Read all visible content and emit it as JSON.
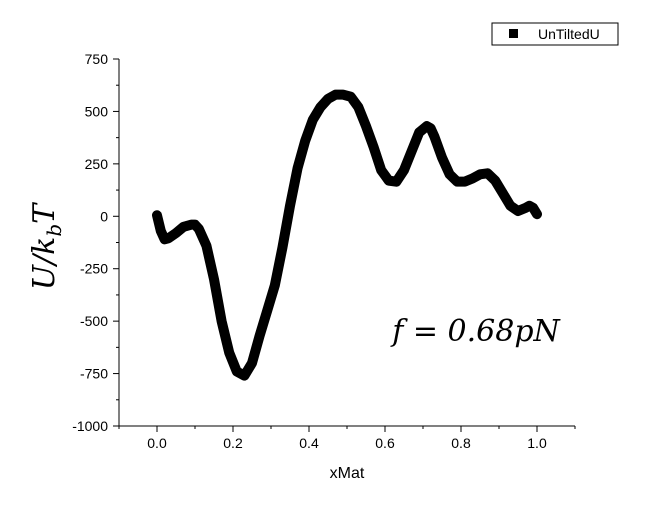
{
  "chart_data": {
    "type": "line",
    "title": "",
    "xlabel": "xMat",
    "ylabel": "U/k_bT",
    "xlim": [
      -0.1,
      1.1
    ],
    "ylim": [
      -1000,
      750
    ],
    "x_ticks": [
      0.0,
      0.2,
      0.4,
      0.6,
      0.8,
      1.0
    ],
    "x_tick_labels": [
      "0.0",
      "0.2",
      "0.4",
      "0.6",
      "0.8",
      "1.0"
    ],
    "y_ticks": [
      750,
      500,
      250,
      0,
      -250,
      -500,
      -750,
      -1000
    ],
    "y_tick_labels": [
      "750",
      "500",
      "250",
      "0",
      "-250",
      "-500",
      "-750",
      "-1000"
    ],
    "legend": {
      "placement": "top-right",
      "label": "UnTiltedU"
    },
    "annotation": "f = 0.68pN",
    "grid": false,
    "series": [
      {
        "name": "UnTiltedU",
        "color": "#000000",
        "x": [
          0.0,
          0.01,
          0.02,
          0.03,
          0.05,
          0.07,
          0.09,
          0.1,
          0.11,
          0.13,
          0.15,
          0.17,
          0.19,
          0.21,
          0.23,
          0.25,
          0.27,
          0.29,
          0.31,
          0.33,
          0.35,
          0.37,
          0.39,
          0.41,
          0.43,
          0.45,
          0.47,
          0.49,
          0.51,
          0.53,
          0.55,
          0.57,
          0.59,
          0.61,
          0.63,
          0.65,
          0.67,
          0.69,
          0.71,
          0.72,
          0.73,
          0.75,
          0.77,
          0.79,
          0.81,
          0.83,
          0.85,
          0.87,
          0.89,
          0.91,
          0.93,
          0.95,
          0.97,
          0.98,
          0.99,
          1.0
        ],
        "y": [
          5,
          -70,
          -110,
          -105,
          -80,
          -50,
          -40,
          -40,
          -60,
          -140,
          -300,
          -500,
          -650,
          -740,
          -760,
          -700,
          -570,
          -450,
          -330,
          -150,
          50,
          230,
          360,
          460,
          520,
          560,
          580,
          580,
          570,
          520,
          430,
          330,
          220,
          170,
          165,
          220,
          310,
          400,
          430,
          420,
          380,
          280,
          200,
          165,
          165,
          180,
          200,
          205,
          170,
          110,
          50,
          25,
          40,
          50,
          40,
          10
        ]
      }
    ]
  }
}
